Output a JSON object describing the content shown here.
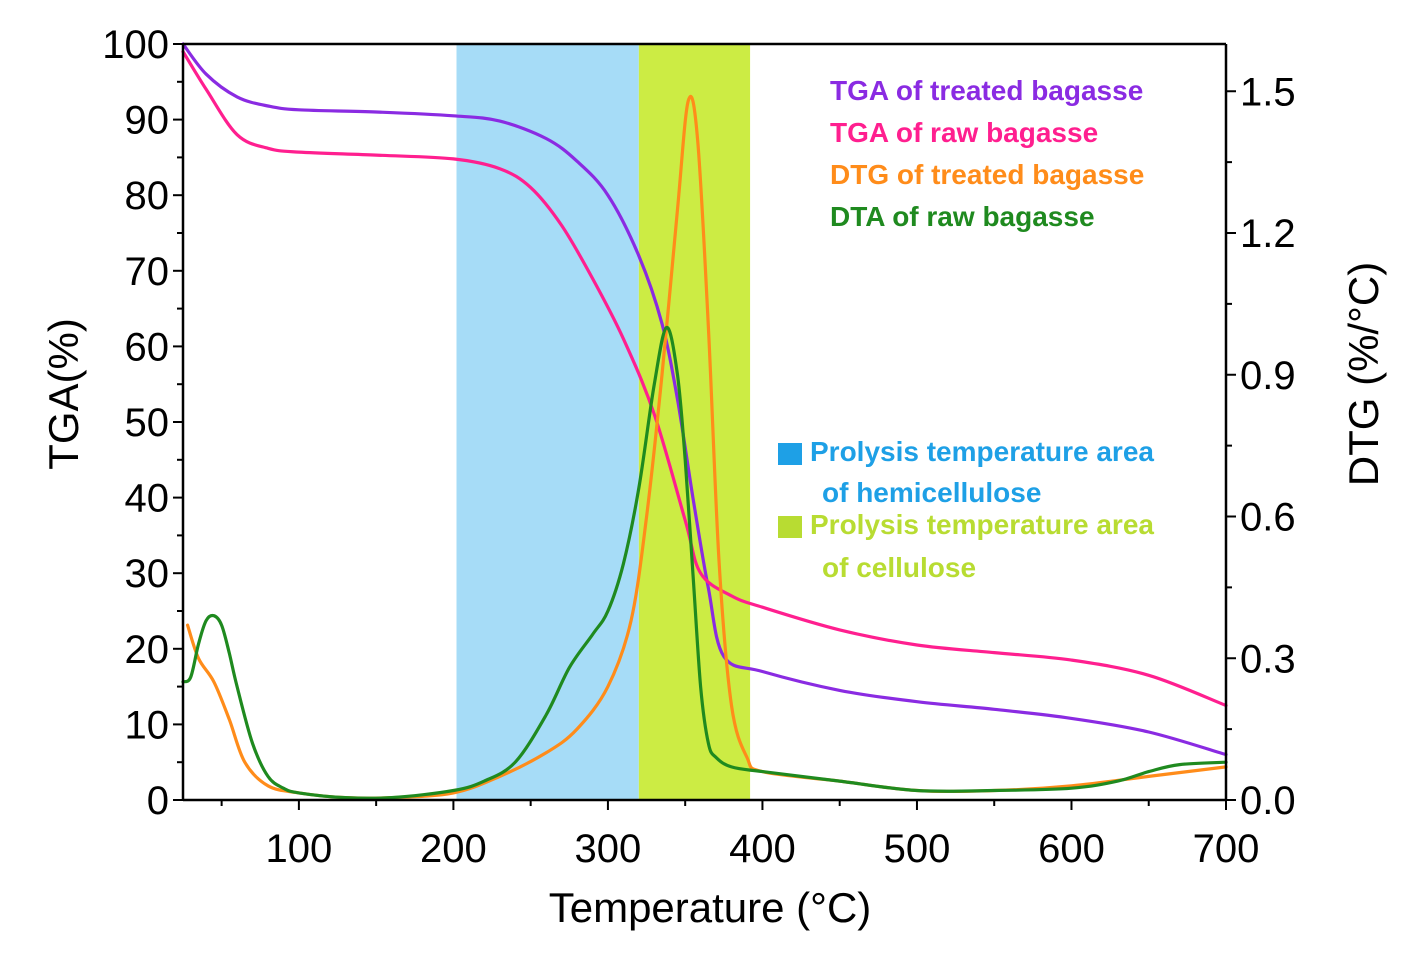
{
  "chart_data": {
    "type": "line",
    "xlabel": "Temperature (°C)",
    "ylabel_left": "TGA(%)",
    "ylabel_right": "DTG (%/°C)",
    "xlim": [
      25,
      700
    ],
    "ylim_left": [
      0,
      100
    ],
    "ylim_right": [
      0,
      1.6
    ],
    "x_ticks": [
      100,
      200,
      300,
      400,
      500,
      600,
      700
    ],
    "x_tick_labels": [
      "100",
      "200",
      "300",
      "400",
      "500",
      "600",
      "700"
    ],
    "y_left_ticks": [
      0,
      10,
      20,
      30,
      40,
      50,
      60,
      70,
      80,
      90,
      100
    ],
    "y_left_tick_labels": [
      "0",
      "10",
      "20",
      "30",
      "40",
      "50",
      "60",
      "70",
      "80",
      "90",
      "100"
    ],
    "y_right_ticks": [
      0,
      0.3,
      0.6,
      0.9,
      1.2,
      1.5
    ],
    "y_right_tick_labels": [
      "0.0",
      "0.3",
      "0.6",
      "0.9",
      "1.2",
      "1.5"
    ],
    "regions": [
      {
        "name": "hemicellulose",
        "x_range": [
          202,
          320
        ],
        "color": "#a6dcf7",
        "legend_color": "#1ea0e6",
        "label_lines": [
          "Prolysis temperature area",
          "of hemicellulose"
        ]
      },
      {
        "name": "cellulose",
        "x_range": [
          320,
          392
        ],
        "color": "#ccec44",
        "legend_color": "#b8dc32",
        "label_lines": [
          "Prolysis temperature area",
          "of cellulose"
        ]
      }
    ],
    "series": [
      {
        "name": "TGA of treated bagasse",
        "axis": "left",
        "color": "#8a2be2",
        "x": [
          25,
          40,
          60,
          80,
          100,
          150,
          200,
          230,
          260,
          280,
          300,
          320,
          335,
          345,
          355,
          365,
          375,
          400,
          450,
          500,
          550,
          600,
          650,
          700
        ],
        "y": [
          100,
          96,
          93,
          91.8,
          91.3,
          91,
          90.5,
          89.8,
          87.5,
          84.5,
          80,
          72,
          63,
          53,
          40,
          28,
          19,
          17,
          14.5,
          13,
          12,
          10.8,
          9,
          6
        ]
      },
      {
        "name": "TGA of raw bagasse",
        "axis": "left",
        "color": "#ff1f8f",
        "x": [
          25,
          40,
          60,
          80,
          100,
          150,
          200,
          230,
          250,
          270,
          290,
          310,
          330,
          350,
          360,
          380,
          400,
          450,
          500,
          550,
          600,
          650,
          700
        ],
        "y": [
          99,
          94,
          88,
          86.2,
          85.7,
          85.3,
          84.8,
          83.5,
          81,
          76,
          69,
          61,
          51,
          37,
          30,
          27,
          25.5,
          22.5,
          20.5,
          19.5,
          18.5,
          16.5,
          12.5
        ]
      },
      {
        "name": "DTG of treated bagasse",
        "axis": "right",
        "color": "#ff8c1a",
        "x": [
          28,
          35,
          45,
          55,
          65,
          80,
          100,
          130,
          160,
          200,
          230,
          260,
          280,
          300,
          315,
          325,
          335,
          345,
          352,
          358,
          365,
          372,
          380,
          390,
          400,
          450,
          500,
          550,
          600,
          650,
          700
        ],
        "y": [
          0.37,
          0.3,
          0.25,
          0.17,
          0.08,
          0.03,
          0.015,
          0.005,
          0.005,
          0.015,
          0.05,
          0.1,
          0.15,
          0.24,
          0.38,
          0.6,
          0.9,
          1.25,
          1.48,
          1.4,
          1.0,
          0.5,
          0.2,
          0.09,
          0.06,
          0.04,
          0.02,
          0.02,
          0.03,
          0.05,
          0.07
        ]
      },
      {
        "name": "DTA of raw bagasse",
        "axis": "right",
        "color": "#1f8a1f",
        "x": [
          25,
          30,
          35,
          40,
          45,
          50,
          55,
          60,
          70,
          80,
          90,
          100,
          130,
          160,
          200,
          220,
          240,
          260,
          275,
          290,
          300,
          310,
          320,
          330,
          338,
          345,
          350,
          355,
          360,
          365,
          370,
          380,
          400,
          450,
          500,
          550,
          600,
          630,
          650,
          670,
          700
        ],
        "y": [
          0.25,
          0.26,
          0.33,
          0.38,
          0.39,
          0.37,
          0.31,
          0.24,
          0.12,
          0.05,
          0.025,
          0.015,
          0.005,
          0.005,
          0.02,
          0.04,
          0.08,
          0.18,
          0.28,
          0.35,
          0.4,
          0.5,
          0.66,
          0.88,
          1.0,
          0.9,
          0.72,
          0.48,
          0.24,
          0.12,
          0.09,
          0.07,
          0.06,
          0.04,
          0.02,
          0.02,
          0.025,
          0.04,
          0.06,
          0.075,
          0.08
        ]
      }
    ]
  }
}
